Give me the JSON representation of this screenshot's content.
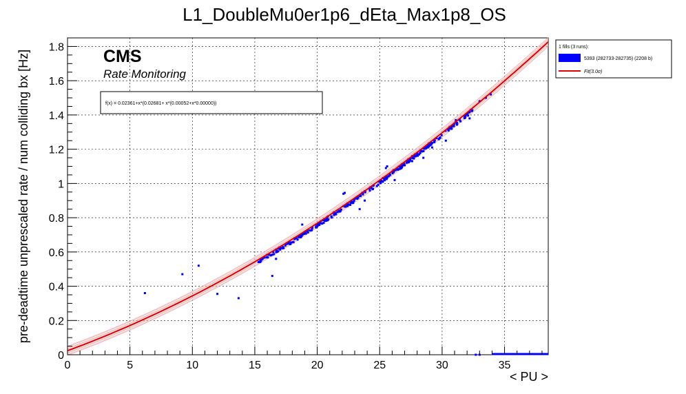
{
  "chart_data": {
    "type": "scatter",
    "title": "L1_DoubleMu0er1p6_dEta_Max1p8_OS",
    "xlabel": "< PU >",
    "ylabel": "pre-deadtime unprescaled rate / num colliding bx [Hz]",
    "xlim": [
      0,
      38.5
    ],
    "ylim": [
      0,
      1.85
    ],
    "xticks": [
      0,
      5,
      10,
      15,
      20,
      25,
      30,
      35
    ],
    "yticks": [
      0,
      0.2,
      0.4,
      0.6,
      0.8,
      1,
      1.2,
      1.4,
      1.6,
      1.8
    ],
    "xtick_labels": [
      "0",
      "5",
      "10",
      "15",
      "20",
      "25",
      "30",
      "35"
    ],
    "ytick_labels": [
      "0",
      "0.2",
      "0.4",
      "0.6",
      "0.8",
      "1",
      "1.2",
      "1.4",
      "1.6",
      "1.8"
    ],
    "grid": true,
    "legend_position": "outside-top-right",
    "watermark_main": "CMS",
    "watermark_sub": "Rate Monitoring",
    "formula": "f(x) = 0.02361+x*(0.02681+ x*(0.00052+x*0.00000))",
    "fit": {
      "name": "Fit(3.0σ)",
      "coefficients": [
        0.02361,
        0.02681,
        0.00052,
        0.0
      ],
      "x_range": [
        0,
        38.5
      ],
      "band_sigma": 3.0,
      "band_half_width": 0.03,
      "color": "#dd0000"
    },
    "legend": {
      "header": "1 fills (3 runs):",
      "entries": [
        {
          "label": "5393 (282733-282735) (2208 b)",
          "color": "#0000ff"
        },
        {
          "label": "Fit(3.0σ)",
          "color": "#dd0000"
        }
      ]
    },
    "series": [
      {
        "name": "5393 (282733-282735) (2208 b)",
        "color": "#0000ff",
        "main_band": {
          "x_range": [
            15.2,
            32.5
          ],
          "count": 330
        },
        "outliers": [
          [
            6.2,
            0.36
          ],
          [
            9.2,
            0.47
          ],
          [
            10.5,
            0.52
          ],
          [
            12.0,
            0.355
          ],
          [
            13.7,
            0.33
          ],
          [
            16.4,
            0.46
          ],
          [
            16.7,
            0.56
          ],
          [
            18.5,
            0.69
          ],
          [
            18.8,
            0.76
          ],
          [
            21.5,
            0.82
          ],
          [
            22.1,
            0.94
          ],
          [
            22.2,
            0.945
          ],
          [
            23.2,
            0.92
          ],
          [
            23.4,
            0.85
          ],
          [
            23.8,
            0.9
          ],
          [
            25.5,
            1.09
          ],
          [
            25.6,
            1.1
          ],
          [
            26.2,
            1.02
          ],
          [
            27.6,
            1.13
          ],
          [
            28.3,
            1.19
          ],
          [
            28.5,
            1.15
          ],
          [
            29.2,
            1.21
          ],
          [
            30.3,
            1.25
          ],
          [
            31.1,
            1.37
          ],
          [
            32.2,
            1.38
          ],
          [
            33.0,
            1.48
          ],
          [
            33.5,
            1.5
          ],
          [
            33.9,
            1.52
          ],
          [
            33.0,
            0.0
          ],
          [
            32.7,
            0.0
          ]
        ],
        "zero_segment": {
          "x_range": [
            34.0,
            38.5
          ],
          "y": 0
        }
      }
    ]
  }
}
